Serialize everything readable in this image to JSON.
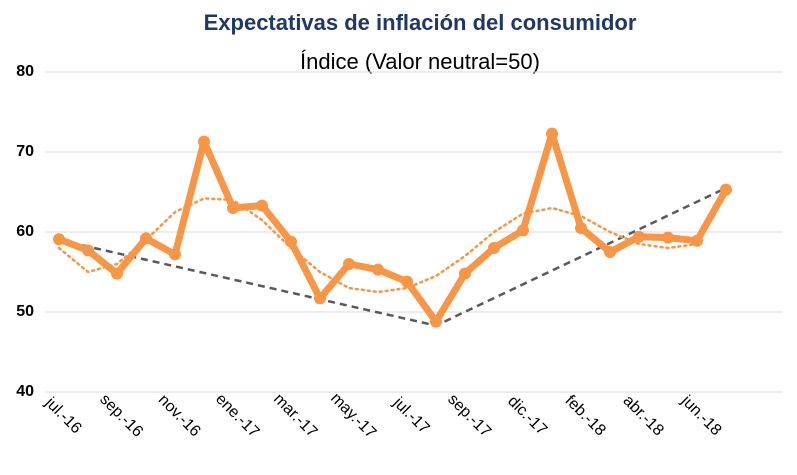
{
  "chart_data": {
    "type": "line",
    "title": "Expectativas de inflación del consumidor",
    "subtitle": "Índice (Valor neutral=50)",
    "categories": [
      "jul.-16",
      null,
      "sep.-16",
      null,
      "nov.-16",
      null,
      "ene.-17",
      null,
      "mar.-17",
      null,
      "may.-17",
      null,
      "jul.-17",
      null,
      "sep.-17",
      null,
      "dic.-17",
      null,
      "feb.-18",
      null,
      "abr.-18",
      null,
      "jun.-18",
      null
    ],
    "series": [
      {
        "color": "#f79646",
        "style": "solid",
        "markers": true,
        "values": [
          59.1,
          57.7,
          54.8,
          59.2,
          57.2,
          71.3,
          63.0,
          63.3,
          58.8,
          51.7,
          56.0,
          55.3,
          53.8,
          48.8,
          54.8,
          58.0,
          60.2,
          72.3,
          60.5,
          57.5,
          59.4,
          59.3,
          58.9,
          65.3
        ]
      },
      {
        "color": "#f79646",
        "style": "dotted",
        "markers": false,
        "values": [
          58,
          55,
          56,
          59,
          62.5,
          64.2,
          64,
          61.5,
          58,
          55,
          53,
          52.5,
          53,
          54.5,
          57,
          60,
          62.3,
          63,
          62,
          60,
          58.5,
          58,
          58.5,
          null
        ]
      }
    ],
    "trend": {
      "color": "#595959",
      "style": "dashed",
      "x": [
        0,
        13,
        23
      ],
      "values": [
        59,
        48.3,
        65.5
      ]
    },
    "ylim": [
      40,
      80
    ],
    "yticks": [
      40,
      50,
      60,
      70,
      80
    ],
    "grid": true
  }
}
